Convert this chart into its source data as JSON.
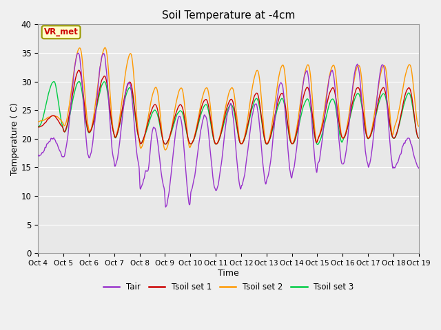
{
  "title": "Soil Temperature at -4cm",
  "xlabel": "Time",
  "ylabel": "Temperature ( C)",
  "ylim": [
    0,
    40
  ],
  "xlim": [
    0,
    15
  ],
  "xtick_labels": [
    "Oct 4",
    "Oct 5",
    "Oct 6",
    "Oct 7",
    "Oct 8",
    "Oct 9",
    "Oct 10",
    "Oct 11",
    "Oct 12",
    "Oct 13",
    "Oct 14",
    "Oct 15",
    "Oct 16",
    "Oct 17",
    "Oct 18",
    "Oct 19"
  ],
  "ytick_vals": [
    0,
    5,
    10,
    15,
    20,
    25,
    30,
    35,
    40
  ],
  "bg_color": "#e8e8e8",
  "fig_color": "#f0f0f0",
  "line_colors": {
    "Tair": "#9933cc",
    "Tsoil1": "#cc0000",
    "Tsoil2": "#ff9900",
    "Tsoil3": "#00cc44"
  },
  "legend_labels": [
    "Tair",
    "Tsoil set 1",
    "Tsoil set 2",
    "Tsoil set 3"
  ],
  "annotation_text": "VR_met",
  "annotation_color": "#cc0000",
  "annotation_bg": "#ffffcc",
  "annotation_edge": "#999900"
}
